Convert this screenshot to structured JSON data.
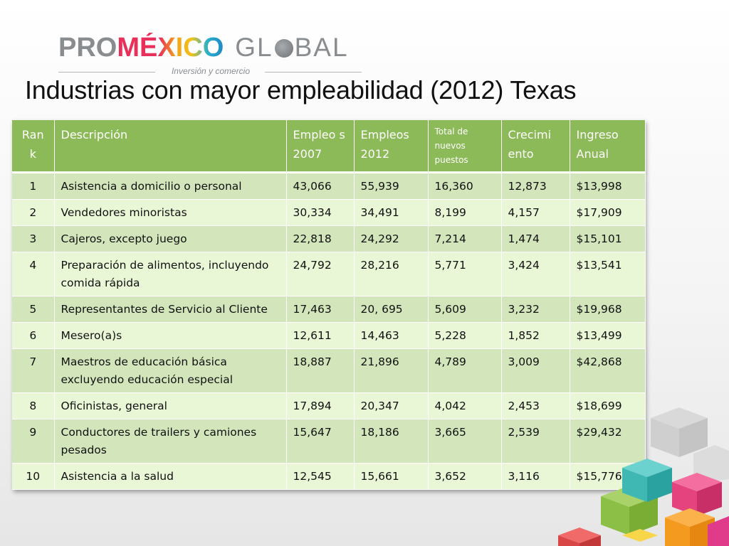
{
  "logo": {
    "pro": "PRO",
    "mexico": "MÉXICO",
    "global_start": "GL",
    "global_end": "BAL",
    "tagline": "Inversión y comercio"
  },
  "title": "Industrias con mayor empleabilidad (2012) Texas",
  "table": {
    "headers": [
      "Ran k",
      "Descripción",
      "Empleo s 2007",
      "Empleos 2012",
      "Total de nuevos puestos",
      "Crecimi ento",
      "Ingreso Anual"
    ],
    "rows": [
      [
        "1",
        "Asistencia a domicilio o personal",
        "43,066",
        "55,939",
        "16,360",
        "12,873",
        "$13,998"
      ],
      [
        "2",
        "Vendedores minoristas",
        "30,334",
        "34,491",
        "8,199",
        "4,157",
        "$17,909"
      ],
      [
        "3",
        "Cajeros, excepto juego",
        "22,818",
        "24,292",
        "7,214",
        "1,474",
        "$15,101"
      ],
      [
        "4",
        "Preparación de alimentos, incluyendo comida rápida",
        "24,792",
        "28,216",
        "5,771",
        "3,424",
        "$13,541"
      ],
      [
        "5",
        "Representantes de Servicio al Cliente",
        "17,463",
        "20, 695",
        "5,609",
        "3,232",
        "$19,968"
      ],
      [
        "6",
        "Mesero(a)s",
        "12,611",
        "14,463",
        "5,228",
        "1,852",
        "$13,499"
      ],
      [
        "7",
        "Maestros de educación básica excluyendo educación especial",
        "18,887",
        "21,896",
        "4,789",
        "3,009",
        "$42,868"
      ],
      [
        "8",
        "Oficinistas, general",
        "17,894",
        "20,347",
        "4,042",
        "2,453",
        "$18,699"
      ],
      [
        "9",
        "Conductores de trailers y camiones pesados",
        "15,647",
        "18,186",
        "3,665",
        "2,539",
        "$29,432"
      ],
      [
        "10",
        "Asistencia a la salud",
        "12,545",
        "15,661",
        "3,652",
        "3,116",
        "$15,776"
      ]
    ]
  },
  "colors": {
    "header_green": "#8dba59",
    "row_dark": "#d3e6bb",
    "row_light": "#eaf7d7"
  }
}
